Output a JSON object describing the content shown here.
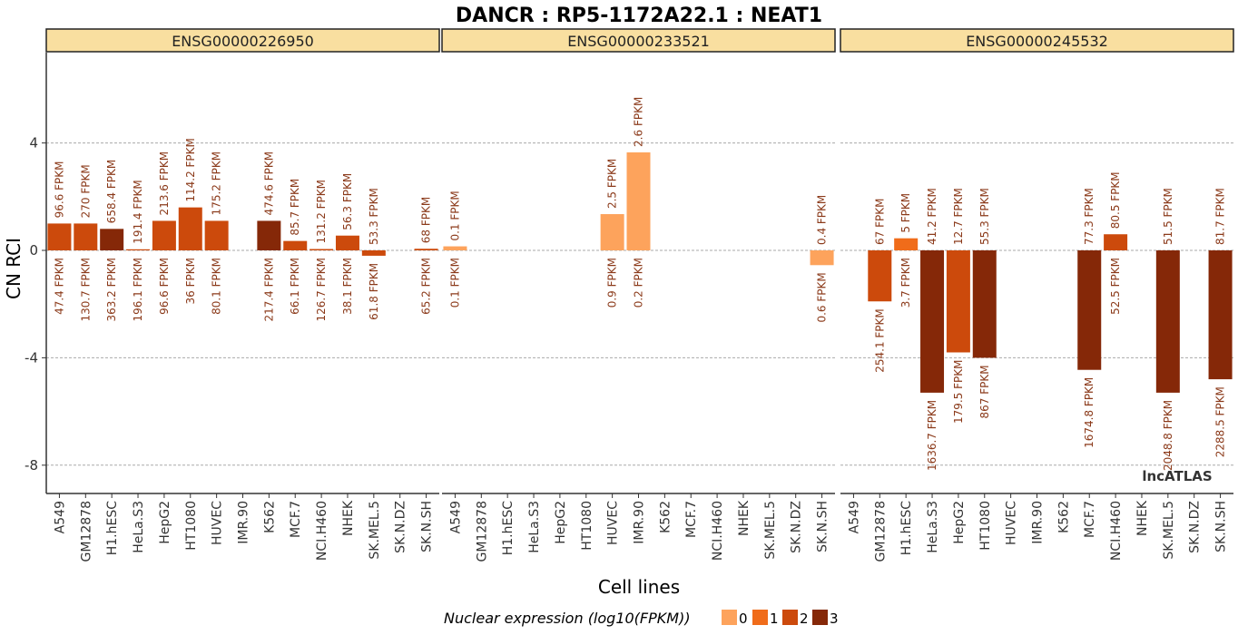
{
  "title": "DANCR : RP5-1172A22.1 : NEAT1",
  "watermark": "lncATLAS",
  "chart_data": {
    "type": "bar",
    "title": "DANCR : RP5-1172A22.1 : NEAT1",
    "xlabel": "Cell lines",
    "ylabel": "CN RCI",
    "ylim": [
      -9,
      7.5
    ],
    "yticks": [
      4,
      0,
      -4,
      -8
    ],
    "ytick_labels": [
      "4",
      "0",
      "-4",
      "-8"
    ],
    "grid": true,
    "legend": {
      "title": "Nuclear expression (log10(FPKM))",
      "position": "bottom",
      "levels": [
        {
          "label": "0",
          "color": "#FDA35C"
        },
        {
          "label": "1",
          "color": "#F06C1A"
        },
        {
          "label": "2",
          "color": "#CC4A0C"
        },
        {
          "label": "3",
          "color": "#852808"
        }
      ]
    },
    "categories": [
      "A549",
      "GM12878",
      "H1.hESC",
      "HeLa.S3",
      "HepG2",
      "HT1080",
      "HUVEC",
      "IMR.90",
      "K562",
      "MCF.7",
      "NCI.H460",
      "NHEK",
      "SK.MEL.5",
      "SK.N.DZ",
      "SK.N.SH"
    ],
    "panels": [
      {
        "name": "ENSG00000226950",
        "values": [
          1.0,
          1.0,
          0.8,
          0.04,
          1.1,
          1.6,
          1.1,
          null,
          1.1,
          0.35,
          0.05,
          0.55,
          -0.2,
          null,
          0.06
        ],
        "level": [
          2,
          2,
          3,
          2,
          2,
          2,
          2,
          null,
          3,
          2,
          2,
          2,
          2,
          null,
          2
        ],
        "top_labels": [
          "96.6 FPKM",
          "270 FPKM",
          "658.4 FPKM",
          "191.4 FPKM",
          "213.6 FPKM",
          "114.2 FPKM",
          "175.2 FPKM",
          null,
          "474.6 FPKM",
          "85.7 FPKM",
          "131.2 FPKM",
          "56.3 FPKM",
          "53.3 FPKM",
          null,
          "68 FPKM"
        ],
        "bottom_labels": [
          "47.4 FPKM",
          "130.7 FPKM",
          "363.2 FPKM",
          "196.1 FPKM",
          "96.6 FPKM",
          "36 FPKM",
          "80.1 FPKM",
          null,
          "217.4 FPKM",
          "66.1 FPKM",
          "126.7 FPKM",
          "38.1 FPKM",
          "61.8 FPKM",
          null,
          "65.2 FPKM"
        ]
      },
      {
        "name": "ENSG00000233521",
        "values": [
          0.15,
          null,
          null,
          null,
          null,
          null,
          1.35,
          3.65,
          null,
          null,
          null,
          null,
          null,
          null,
          -0.55
        ],
        "level": [
          0,
          null,
          null,
          null,
          null,
          null,
          0,
          0,
          null,
          null,
          null,
          null,
          null,
          null,
          0
        ],
        "top_labels": [
          "0.1 FPKM",
          null,
          null,
          null,
          null,
          null,
          "2.5 FPKM",
          "2.6 FPKM",
          null,
          null,
          null,
          null,
          null,
          null,
          "0.4 FPKM"
        ],
        "bottom_labels": [
          "0.1 FPKM",
          null,
          null,
          null,
          null,
          null,
          "0.9 FPKM",
          "0.2 FPKM",
          null,
          null,
          null,
          null,
          null,
          null,
          "0.6 FPKM"
        ]
      },
      {
        "name": "ENSG00000245532",
        "values": [
          null,
          -1.9,
          0.45,
          -5.3,
          -3.8,
          -4.0,
          null,
          null,
          null,
          -4.45,
          0.6,
          null,
          -5.3,
          null,
          -4.8
        ],
        "level": [
          null,
          2,
          1,
          3,
          2,
          3,
          null,
          null,
          null,
          3,
          2,
          null,
          3,
          null,
          3
        ],
        "top_labels": [
          null,
          "67 FPKM",
          "5 FPKM",
          "41.2 FPKM",
          "12.7 FPKM",
          "55.3 FPKM",
          null,
          null,
          null,
          "77.3 FPKM",
          "80.5 FPKM",
          null,
          "51.5 FPKM",
          null,
          "81.7 FPKM"
        ],
        "bottom_labels": [
          null,
          "254.1 FPKM",
          "3.7 FPKM",
          "1636.7 FPKM",
          "179.5 FPKM",
          "867 FPKM",
          null,
          null,
          null,
          "1674.8 FPKM",
          "52.5 FPKM",
          null,
          "2048.8 FPKM",
          null,
          "2288.5 FPKM"
        ]
      }
    ]
  }
}
